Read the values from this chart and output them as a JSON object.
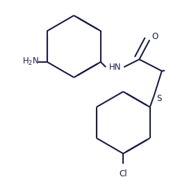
{
  "bg_color": "#ffffff",
  "line_color": "#1a1a4e",
  "line_width": 1.5,
  "dbo": 0.018,
  "font_size": 8.5,
  "figsize": [
    2.46,
    2.54
  ],
  "dpi": 100,
  "xlim": [
    0,
    246
  ],
  "ylim": [
    0,
    254
  ]
}
